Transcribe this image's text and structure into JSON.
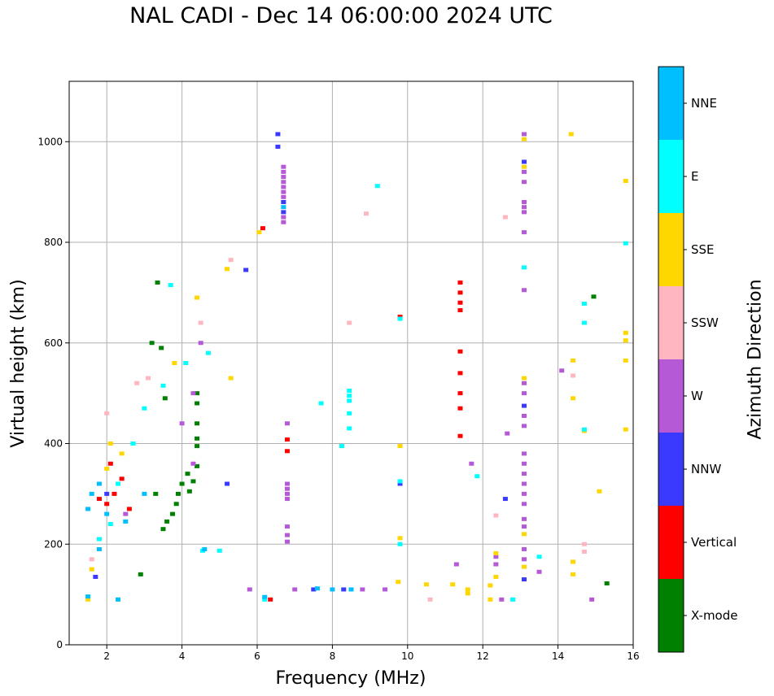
{
  "title": "NAL CADI - Dec 14 06:00:00 2024 UTC",
  "chart_data": {
    "type": "scatter",
    "title": "NAL CADI - Dec 14 06:00:00 2024 UTC",
    "xlabel": "Frequency (MHz)",
    "ylabel": "Virtual height (km)",
    "xlim": [
      1,
      16
    ],
    "ylim": [
      0,
      1120
    ],
    "xticks": [
      2,
      4,
      6,
      8,
      10,
      12,
      14,
      16
    ],
    "yticks": [
      0,
      200,
      400,
      600,
      800,
      1000
    ],
    "grid": true,
    "colorbar": {
      "label": "Azimuth Direction",
      "categories": [
        "X-mode",
        "Vertical",
        "NNW",
        "W",
        "SSW",
        "SSE",
        "E",
        "NNE"
      ],
      "colors": [
        "#008000",
        "#ff0000",
        "#3a3aff",
        "#b659d6",
        "#ffb6c1",
        "#ffd700",
        "#00ffff",
        "#00bfff"
      ]
    },
    "series": [
      {
        "name": "X-mode",
        "points": [
          [
            3.5,
            230
          ],
          [
            3.6,
            245
          ],
          [
            3.75,
            260
          ],
          [
            3.85,
            280
          ],
          [
            3.9,
            300
          ],
          [
            4.0,
            320
          ],
          [
            4.15,
            340
          ],
          [
            4.2,
            305
          ],
          [
            4.3,
            325
          ],
          [
            4.4,
            355
          ],
          [
            4.4,
            395
          ],
          [
            4.4,
            440
          ],
          [
            4.4,
            480
          ],
          [
            4.4,
            500
          ],
          [
            3.3,
            300
          ],
          [
            3.55,
            490
          ],
          [
            3.45,
            590
          ],
          [
            3.35,
            720
          ],
          [
            15.3,
            122
          ],
          [
            14.95,
            692
          ],
          [
            2.9,
            140
          ],
          [
            3.2,
            600
          ],
          [
            4.4,
            410
          ]
        ]
      },
      {
        "name": "Vertical",
        "points": [
          [
            11.4,
            720
          ],
          [
            11.4,
            700
          ],
          [
            11.4,
            680
          ],
          [
            11.4,
            665
          ],
          [
            11.4,
            540
          ],
          [
            11.4,
            500
          ],
          [
            11.4,
            470
          ],
          [
            11.4,
            415
          ],
          [
            11.4,
            583
          ],
          [
            9.8,
            652
          ],
          [
            6.15,
            828
          ],
          [
            6.35,
            90
          ],
          [
            6.8,
            408
          ],
          [
            6.8,
            385
          ],
          [
            2.0,
            280
          ],
          [
            2.2,
            300
          ],
          [
            2.4,
            330
          ],
          [
            1.8,
            290
          ],
          [
            2.6,
            270
          ],
          [
            2.1,
            360
          ]
        ]
      },
      {
        "name": "NNW",
        "points": [
          [
            6.7,
            880
          ],
          [
            6.7,
            860
          ],
          [
            6.55,
            1015
          ],
          [
            6.55,
            990
          ],
          [
            12.6,
            290
          ],
          [
            13.1,
            960
          ],
          [
            13.1,
            475
          ],
          [
            13.1,
            130
          ],
          [
            8.3,
            110
          ],
          [
            7.5,
            110
          ],
          [
            9.8,
            320
          ],
          [
            5.7,
            745
          ],
          [
            5.2,
            320
          ],
          [
            1.7,
            135
          ],
          [
            2.0,
            300
          ]
        ]
      },
      {
        "name": "W",
        "points": [
          [
            6.7,
            950
          ],
          [
            6.7,
            940
          ],
          [
            6.7,
            930
          ],
          [
            6.7,
            920
          ],
          [
            6.7,
            910
          ],
          [
            6.7,
            900
          ],
          [
            6.7,
            890
          ],
          [
            6.7,
            850
          ],
          [
            6.7,
            840
          ],
          [
            6.8,
            440
          ],
          [
            6.8,
            320
          ],
          [
            6.8,
            310
          ],
          [
            6.8,
            300
          ],
          [
            6.8,
            290
          ],
          [
            6.8,
            235
          ],
          [
            6.8,
            218
          ],
          [
            6.8,
            205
          ],
          [
            13.1,
            1015
          ],
          [
            13.1,
            940
          ],
          [
            13.1,
            920
          ],
          [
            13.1,
            880
          ],
          [
            13.1,
            870
          ],
          [
            13.1,
            860
          ],
          [
            13.1,
            820
          ],
          [
            13.1,
            705
          ],
          [
            13.1,
            520
          ],
          [
            13.1,
            500
          ],
          [
            13.1,
            455
          ],
          [
            13.1,
            435
          ],
          [
            13.1,
            380
          ],
          [
            13.1,
            360
          ],
          [
            13.1,
            340
          ],
          [
            13.1,
            320
          ],
          [
            13.1,
            300
          ],
          [
            13.1,
            280
          ],
          [
            13.1,
            250
          ],
          [
            13.1,
            235
          ],
          [
            13.1,
            190
          ],
          [
            13.1,
            170
          ],
          [
            12.65,
            420
          ],
          [
            12.35,
            175
          ],
          [
            12.35,
            160
          ],
          [
            11.7,
            360
          ],
          [
            11.3,
            160
          ],
          [
            5.8,
            110
          ],
          [
            7.0,
            110
          ],
          [
            8.8,
            110
          ],
          [
            9.4,
            110
          ],
          [
            12.5,
            90
          ],
          [
            14.9,
            90
          ],
          [
            14.1,
            545
          ],
          [
            4.5,
            600
          ],
          [
            4.3,
            500
          ],
          [
            4.0,
            440
          ],
          [
            4.3,
            360
          ],
          [
            13.5,
            145
          ],
          [
            2.5,
            260
          ]
        ]
      },
      {
        "name": "SSW",
        "points": [
          [
            12.6,
            850
          ],
          [
            8.9,
            857
          ],
          [
            8.45,
            640
          ],
          [
            12.35,
            257
          ],
          [
            12.8,
            90
          ],
          [
            10.6,
            90
          ],
          [
            14.4,
            535
          ],
          [
            14.7,
            200
          ],
          [
            14.7,
            185
          ],
          [
            1.6,
            170
          ],
          [
            2.0,
            460
          ],
          [
            2.8,
            520
          ],
          [
            3.1,
            530
          ],
          [
            5.3,
            765
          ],
          [
            4.5,
            640
          ]
        ]
      },
      {
        "name": "SSE",
        "points": [
          [
            6.05,
            820
          ],
          [
            13.1,
            1005
          ],
          [
            13.1,
            950
          ],
          [
            13.1,
            530
          ],
          [
            13.1,
            220
          ],
          [
            13.1,
            155
          ],
          [
            12.35,
            182
          ],
          [
            12.35,
            135
          ],
          [
            12.2,
            118
          ],
          [
            14.35,
            1015
          ],
          [
            14.4,
            565
          ],
          [
            14.4,
            490
          ],
          [
            14.4,
            165
          ],
          [
            14.4,
            140
          ],
          [
            14.7,
            425
          ],
          [
            15.1,
            305
          ],
          [
            15.8,
            922
          ],
          [
            15.8,
            620
          ],
          [
            15.8,
            605
          ],
          [
            15.8,
            565
          ],
          [
            15.8,
            428
          ],
          [
            9.8,
            395
          ],
          [
            9.8,
            212
          ],
          [
            9.75,
            125
          ],
          [
            10.5,
            120
          ],
          [
            11.2,
            120
          ],
          [
            11.6,
            110
          ],
          [
            11.6,
            102
          ],
          [
            12.2,
            90
          ],
          [
            1.5,
            90
          ],
          [
            1.6,
            150
          ],
          [
            2.3,
            90
          ],
          [
            2.1,
            400
          ],
          [
            2.4,
            380
          ],
          [
            2.0,
            350
          ],
          [
            5.3,
            530
          ],
          [
            3.8,
            560
          ],
          [
            4.4,
            690
          ],
          [
            5.2,
            747
          ]
        ]
      },
      {
        "name": "E",
        "points": [
          [
            8.45,
            505
          ],
          [
            8.45,
            495
          ],
          [
            8.45,
            485
          ],
          [
            8.45,
            460
          ],
          [
            8.45,
            430
          ],
          [
            7.7,
            480
          ],
          [
            9.2,
            912
          ],
          [
            9.8,
            648
          ],
          [
            9.8,
            325
          ],
          [
            9.8,
            200
          ],
          [
            8.25,
            395
          ],
          [
            11.85,
            335
          ],
          [
            12.8,
            90
          ],
          [
            13.5,
            175
          ],
          [
            14.7,
            678
          ],
          [
            14.7,
            640
          ],
          [
            14.7,
            428
          ],
          [
            15.8,
            798
          ],
          [
            13.1,
            750
          ],
          [
            6.2,
            90
          ],
          [
            4.55,
            187
          ],
          [
            5.0,
            187
          ],
          [
            3.7,
            715
          ],
          [
            4.1,
            560
          ],
          [
            4.7,
            580
          ],
          [
            1.8,
            210
          ],
          [
            2.1,
            240
          ],
          [
            2.3,
            320
          ],
          [
            2.7,
            400
          ],
          [
            3.0,
            470
          ],
          [
            3.5,
            515
          ]
        ]
      },
      {
        "name": "NNE",
        "points": [
          [
            6.7,
            870
          ],
          [
            6.2,
            95
          ],
          [
            8.0,
            110
          ],
          [
            8.5,
            110
          ],
          [
            7.6,
            112
          ],
          [
            1.5,
            270
          ],
          [
            1.6,
            300
          ],
          [
            1.8,
            320
          ],
          [
            2.0,
            260
          ],
          [
            2.5,
            245
          ],
          [
            2.3,
            90
          ],
          [
            1.5,
            96
          ],
          [
            1.8,
            190
          ],
          [
            3.0,
            300
          ],
          [
            4.6,
            190
          ]
        ]
      }
    ]
  }
}
